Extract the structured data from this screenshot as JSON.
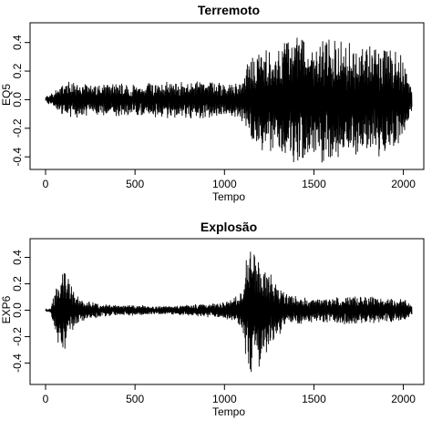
{
  "chart_data": [
    {
      "type": "line",
      "title": "Terremoto",
      "xlabel": "Tempo",
      "ylabel": "EQ5",
      "xlim": [
        0,
        2048
      ],
      "ylim": [
        -0.45,
        0.5
      ],
      "xticks": [
        "0",
        "500",
        "1000",
        "1500",
        "2000"
      ],
      "yticks": [
        "-0.4",
        "-0.2",
        "0.0",
        "0.2",
        "0.4"
      ],
      "grid": false,
      "line_color": "#000000",
      "series": [
        {
          "x": [
            0,
            128,
            256,
            384,
            512,
            640,
            768,
            896,
            1024,
            1088,
            1152,
            1216,
            1280,
            1344,
            1408,
            1472,
            1536,
            1600,
            1664,
            1728,
            1792,
            1856,
            1920,
            1984,
            2048
          ],
          "envelope": [
            0.02,
            0.12,
            0.1,
            0.11,
            0.1,
            0.12,
            0.12,
            0.13,
            0.1,
            0.13,
            0.3,
            0.35,
            0.32,
            0.42,
            0.45,
            0.38,
            0.4,
            0.42,
            0.4,
            0.35,
            0.35,
            0.36,
            0.38,
            0.32,
            0.08
          ]
        }
      ]
    },
    {
      "type": "line",
      "title": "Explosão",
      "xlabel": "Tempo",
      "ylabel": "EXP6",
      "xlim": [
        0,
        2048
      ],
      "ylim": [
        -0.52,
        0.5
      ],
      "xticks": [
        "0",
        "500",
        "1000",
        "1500",
        "2000"
      ],
      "yticks": [
        "-0.4",
        "-0.2",
        "0.0",
        "0.2",
        "0.4"
      ],
      "grid": false,
      "line_color": "#000000",
      "series": [
        {
          "x": [
            0,
            30,
            60,
            90,
            120,
            160,
            200,
            260,
            320,
            400,
            500,
            600,
            700,
            800,
            900,
            1000,
            1050,
            1100,
            1130,
            1160,
            1200,
            1250,
            1300,
            1350,
            1400,
            1500,
            1600,
            1700,
            1800,
            1900,
            2000,
            2048
          ],
          "envelope": [
            0.005,
            0.02,
            0.2,
            0.3,
            0.25,
            0.12,
            0.08,
            0.06,
            0.05,
            0.04,
            0.04,
            0.03,
            0.03,
            0.04,
            0.05,
            0.06,
            0.08,
            0.15,
            0.45,
            0.48,
            0.4,
            0.28,
            0.18,
            0.12,
            0.1,
            0.08,
            0.09,
            0.1,
            0.1,
            0.09,
            0.08,
            0.05
          ]
        }
      ]
    }
  ]
}
